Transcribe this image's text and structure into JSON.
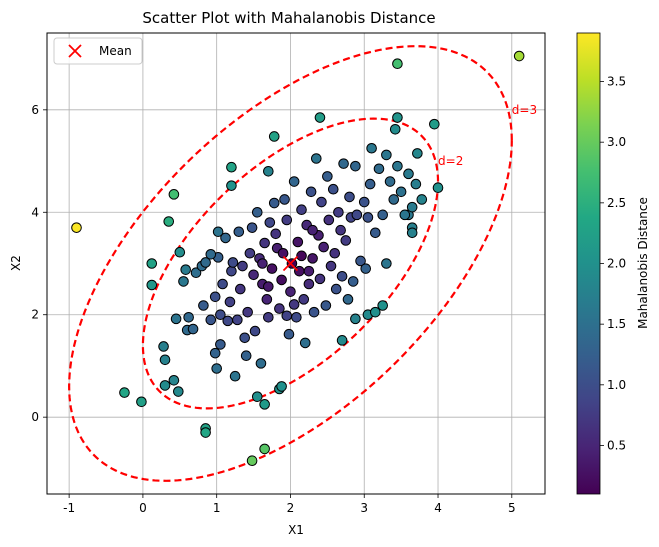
{
  "chart_data": {
    "type": "scatter",
    "title": "Scatter Plot with Mahalanobis Distance",
    "xlabel": "X1",
    "ylabel": "X2",
    "xlim": [
      -1.3,
      5.45
    ],
    "ylim": [
      -1.5,
      7.5
    ],
    "xticks": [
      -1,
      0,
      1,
      2,
      3,
      4,
      5
    ],
    "yticks": [
      0,
      2,
      4,
      6
    ],
    "grid": true,
    "legend": {
      "placement": "top-left",
      "entries": [
        {
          "label": "Mean",
          "marker": "x",
          "color": "#ff0000"
        }
      ]
    },
    "colorbar": {
      "label": "Mahalanobis Distance",
      "range": [
        0.1,
        3.9
      ],
      "ticks": [
        "0.5",
        "1.0",
        "1.5",
        "2.0",
        "2.5",
        "3.0",
        "3.5"
      ],
      "tick_values": [
        0.5,
        1.0,
        1.5,
        2.0,
        2.5,
        3.0,
        3.5
      ],
      "colormap": "viridis"
    },
    "mean": {
      "x": 2.0,
      "y": 3.0
    },
    "covariance": [
      [
        1.0,
        0.8
      ],
      [
        0.8,
        2.0
      ]
    ],
    "contours": [
      {
        "d": 2,
        "label": "d=2",
        "label_x": 4.0,
        "label_y": 5.0,
        "color": "#ff0000"
      },
      {
        "d": 3,
        "label": "d=3",
        "label_x": 5.0,
        "label_y": 6.0,
        "color": "#ff0000"
      }
    ],
    "points": [
      [
        -0.9,
        3.7
      ],
      [
        5.1,
        7.05
      ],
      [
        3.45,
        6.9
      ],
      [
        -0.25,
        0.48
      ],
      [
        -0.02,
        0.3
      ],
      [
        1.48,
        -0.85
      ],
      [
        1.65,
        -0.62
      ],
      [
        0.85,
        -0.22
      ],
      [
        0.85,
        -0.3
      ],
      [
        0.3,
        0.62
      ],
      [
        0.42,
        0.72
      ],
      [
        0.48,
        0.5
      ],
      [
        1.65,
        0.25
      ],
      [
        1.55,
        0.4
      ],
      [
        1.85,
        0.55
      ],
      [
        1.88,
        0.6
      ],
      [
        0.28,
        1.38
      ],
      [
        0.3,
        1.12
      ],
      [
        0.12,
        2.58
      ],
      [
        0.12,
        3.0
      ],
      [
        0.35,
        3.82
      ],
      [
        0.42,
        4.35
      ],
      [
        0.5,
        3.22
      ],
      [
        0.58,
        2.88
      ],
      [
        0.6,
        1.7
      ],
      [
        3.95,
        5.72
      ],
      [
        3.3,
        5.12
      ],
      [
        3.45,
        5.85
      ],
      [
        2.4,
        5.85
      ],
      [
        1.2,
        4.88
      ],
      [
        1.2,
        4.52
      ],
      [
        1.7,
        4.8
      ],
      [
        1.78,
        5.48
      ],
      [
        3.42,
        5.62
      ],
      [
        4.0,
        4.48
      ],
      [
        3.78,
        4.25
      ],
      [
        3.65,
        3.7
      ],
      [
        3.65,
        3.6
      ],
      [
        3.6,
        3.95
      ],
      [
        3.65,
        4.1
      ],
      [
        3.25,
        2.18
      ],
      [
        3.05,
        2.0
      ],
      [
        3.15,
        2.05
      ],
      [
        2.88,
        1.92
      ],
      [
        2.7,
        1.5
      ],
      [
        0.45,
        1.92
      ],
      [
        0.55,
        2.65
      ],
      [
        0.62,
        1.95
      ],
      [
        0.68,
        1.72
      ],
      [
        0.72,
        2.82
      ],
      [
        0.8,
        2.95
      ],
      [
        0.82,
        2.18
      ],
      [
        0.85,
        3.02
      ],
      [
        0.92,
        1.9
      ],
      [
        0.98,
        2.35
      ],
      [
        0.98,
        1.25
      ],
      [
        1.0,
        0.95
      ],
      [
        1.02,
        3.62
      ],
      [
        1.02,
        3.12
      ],
      [
        1.05,
        1.42
      ],
      [
        1.05,
        2.0
      ],
      [
        1.08,
        2.6
      ],
      [
        1.12,
        3.5
      ],
      [
        1.15,
        1.88
      ],
      [
        1.18,
        2.25
      ],
      [
        1.2,
        2.85
      ],
      [
        1.22,
        3.02
      ],
      [
        1.25,
        0.8
      ],
      [
        1.28,
        1.9
      ],
      [
        1.3,
        3.62
      ],
      [
        1.32,
        2.5
      ],
      [
        1.35,
        2.95
      ],
      [
        1.38,
        1.55
      ],
      [
        1.4,
        1.2
      ],
      [
        1.42,
        2.05
      ],
      [
        1.45,
        3.2
      ],
      [
        1.48,
        3.7
      ],
      [
        1.5,
        2.78
      ],
      [
        1.52,
        1.68
      ],
      [
        1.55,
        4.0
      ],
      [
        1.58,
        3.1
      ],
      [
        1.6,
        1.05
      ],
      [
        1.62,
        2.6
      ],
      [
        1.65,
        3.4
      ],
      [
        1.68,
        2.3
      ],
      [
        1.7,
        1.95
      ],
      [
        1.72,
        3.8
      ],
      [
        1.75,
        2.9
      ],
      [
        1.78,
        4.18
      ],
      [
        1.8,
        3.58
      ],
      [
        1.82,
        3.3
      ],
      [
        1.85,
        2.12
      ],
      [
        1.88,
        2.68
      ],
      [
        1.9,
        3.2
      ],
      [
        1.92,
        4.25
      ],
      [
        1.95,
        3.85
      ],
      [
        1.98,
        1.62
      ],
      [
        2.0,
        2.45
      ],
      [
        2.02,
        3.0
      ],
      [
        2.05,
        4.6
      ],
      [
        2.08,
        1.95
      ],
      [
        2.1,
        3.42
      ],
      [
        2.12,
        2.85
      ],
      [
        2.15,
        4.05
      ],
      [
        2.18,
        2.3
      ],
      [
        2.2,
        1.45
      ],
      [
        2.22,
        3.75
      ],
      [
        2.25,
        2.6
      ],
      [
        2.28,
        4.4
      ],
      [
        2.3,
        3.1
      ],
      [
        2.32,
        2.05
      ],
      [
        2.35,
        5.05
      ],
      [
        2.38,
        3.55
      ],
      [
        2.4,
        2.7
      ],
      [
        2.42,
        4.2
      ],
      [
        2.45,
        3.32
      ],
      [
        2.48,
        2.18
      ],
      [
        2.5,
        4.7
      ],
      [
        2.52,
        3.85
      ],
      [
        2.55,
        2.95
      ],
      [
        2.58,
        4.45
      ],
      [
        2.6,
        3.2
      ],
      [
        2.62,
        2.5
      ],
      [
        2.65,
        4.0
      ],
      [
        2.68,
        3.65
      ],
      [
        2.7,
        2.75
      ],
      [
        2.72,
        4.95
      ],
      [
        2.75,
        3.45
      ],
      [
        2.78,
        2.3
      ],
      [
        2.8,
        4.3
      ],
      [
        2.82,
        3.9
      ],
      [
        2.85,
        2.65
      ],
      [
        2.88,
        4.9
      ],
      [
        2.9,
        3.95
      ],
      [
        2.95,
        3.05
      ],
      [
        3.0,
        4.2
      ],
      [
        3.02,
        2.9
      ],
      [
        3.05,
        3.9
      ],
      [
        3.08,
        4.55
      ],
      [
        3.1,
        5.25
      ],
      [
        3.15,
        3.6
      ],
      [
        3.2,
        4.85
      ],
      [
        3.25,
        3.95
      ],
      [
        3.3,
        3.0
      ],
      [
        3.35,
        4.6
      ],
      [
        3.4,
        4.25
      ],
      [
        3.45,
        4.9
      ],
      [
        3.5,
        4.4
      ],
      [
        3.55,
        3.95
      ],
      [
        3.6,
        4.75
      ],
      [
        3.7,
        4.55
      ],
      [
        3.72,
        5.15
      ],
      [
        0.92,
        3.18
      ],
      [
        1.95,
        1.98
      ],
      [
        2.05,
        2.2
      ],
      [
        2.25,
        2.85
      ],
      [
        2.3,
        3.65
      ],
      [
        1.62,
        3.0
      ],
      [
        1.7,
        2.55
      ],
      [
        2.15,
        3.15
      ]
    ]
  }
}
